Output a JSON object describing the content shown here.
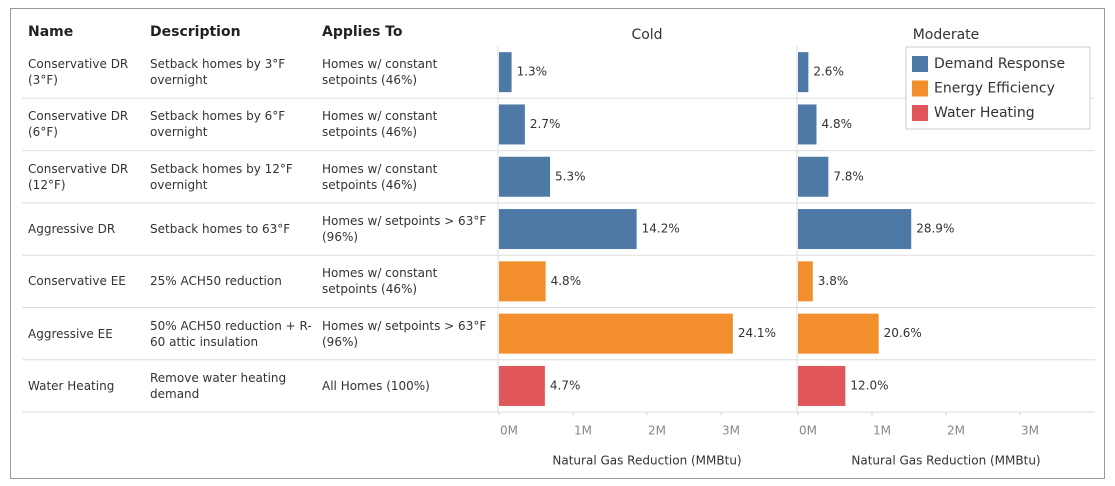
{
  "table_headers": [
    "Name",
    "Description",
    "Applies To"
  ],
  "chart_data": {
    "type": "bar",
    "orientation": "horizontal",
    "categories": [
      "Conservative DR (3°F)",
      "Conservative DR (6°F)",
      "Conservative DR (12°F)",
      "Aggressive DR",
      "Conservative EE",
      "Aggressive EE",
      "Water Heating"
    ],
    "descriptions": [
      "Setback homes by 3°F overnight",
      "Setback homes by 6°F overnight",
      "Setback homes by 12°F overnight",
      "Setback homes to 63°F",
      "25% ACH50 reduction",
      "50% ACH50 reduction + R-60 attic insulation",
      "Remove water heating demand"
    ],
    "applies_to": [
      "Homes w/ constant setpoints (46%)",
      "Homes w/ constant setpoints (46%)",
      "Homes w/ constant setpoints (46%)",
      "Homes w/ setpoints > 63°F (96%)",
      "Homes w/ constant setpoints (46%)",
      "Homes w/ setpoints > 63°F (96%)",
      "All Homes (100%)"
    ],
    "category_groups": [
      "Demand Response",
      "Demand Response",
      "Demand Response",
      "Demand Response",
      "Energy Efficiency",
      "Energy Efficiency",
      "Water Heating"
    ],
    "legend": {
      "position": "top-right",
      "entries": [
        {
          "name": "Demand Response",
          "color": "#4e79a7"
        },
        {
          "name": "Energy Efficiency",
          "color": "#f28e2b"
        },
        {
          "name": "Water Heating",
          "color": "#e15759"
        }
      ]
    },
    "panels": [
      {
        "title": "Cold",
        "xlabel": "Natural Gas Reduction (MMBtu)",
        "values": [
          170000,
          350000,
          690000,
          1860000,
          630000,
          3160000,
          620000
        ],
        "share_labels": [
          "1.3%",
          "2.7%",
          "5.3%",
          "14.2%",
          "4.8%",
          "24.1%",
          "4.7%"
        ]
      },
      {
        "title": "Moderate",
        "xlabel": "Natural Gas Reduction (MMBtu)",
        "values": [
          140000,
          250000,
          410000,
          1530000,
          200000,
          1090000,
          640000
        ],
        "share_labels": [
          "2.6%",
          "4.8%",
          "7.8%",
          "28.9%",
          "3.8%",
          "20.6%",
          "12.0%"
        ]
      }
    ],
    "xlim": [
      0,
      4000000
    ],
    "xticks": [
      {
        "value": 0,
        "label": "0M"
      },
      {
        "value": 1000000,
        "label": "1M"
      },
      {
        "value": 2000000,
        "label": "2M"
      },
      {
        "value": 3000000,
        "label": "3M"
      }
    ]
  }
}
